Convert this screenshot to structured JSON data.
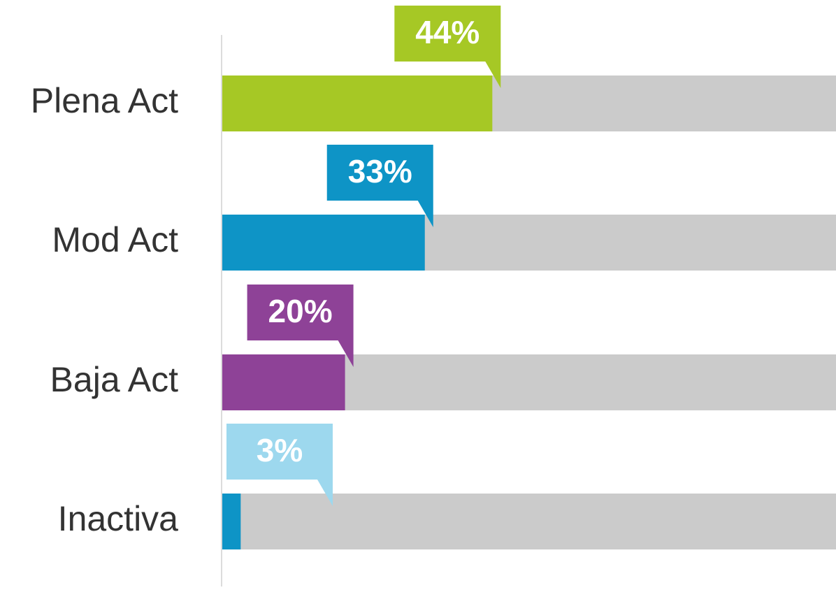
{
  "chart_data": {
    "type": "bar",
    "orientation": "horizontal",
    "categories": [
      "Plena Act",
      "Mod Act",
      "Baja Act",
      "Inactiva"
    ],
    "values": [
      44,
      33,
      20,
      3
    ],
    "value_labels": [
      "44%",
      "33%",
      "20%",
      "3%"
    ],
    "colors": [
      "#a6c825",
      "#0e94c6",
      "#8e4297",
      "#0e94c6"
    ],
    "label_colors": [
      "#a6c825",
      "#0e94c6",
      "#8e4297",
      "#9dd8ee"
    ],
    "track_color": "#cbcbcb",
    "xlim": [
      0,
      100
    ]
  }
}
